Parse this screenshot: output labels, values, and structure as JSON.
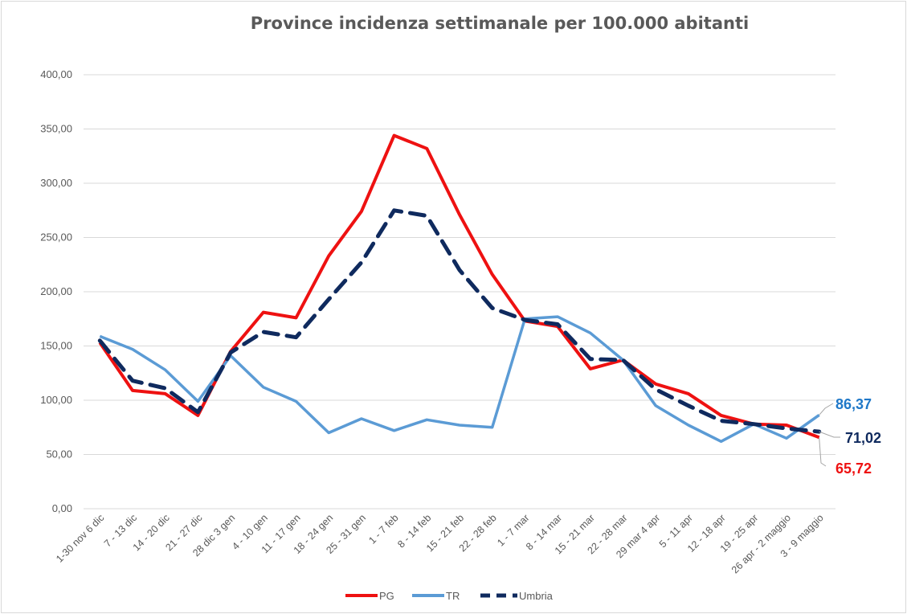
{
  "chart_data": {
    "type": "line",
    "title": "Province incidenza settimanale per 100.000 abitanti",
    "xlabel": "",
    "ylabel": "",
    "ylim": [
      0,
      400
    ],
    "yticks": [
      "0,00",
      "50,00",
      "100,00",
      "150,00",
      "200,00",
      "250,00",
      "300,00",
      "350,00",
      "400,00"
    ],
    "grid": true,
    "legend_position": "bottom",
    "categories": [
      "1-30 nov 6 dic",
      "7 - 13 dic",
      "14 - 20 dic",
      "21 - 27 dic",
      "28 dic 3 gen",
      "4 - 10 gen",
      "11 - 17 gen",
      "18 - 24 gen",
      "25 - 31 gen",
      "1 - 7 feb",
      "8 - 14 feb",
      "15 - 21 feb",
      "22 - 28 feb",
      "1 - 7 mar",
      "8 - 14 mar",
      "15 - 21 mar",
      "22 - 28 mar",
      "29 mar 4 apr",
      "5 - 11 apr",
      "12 - 18 apr",
      "19 - 25 apr",
      "26 apr - 2 maggio",
      "3 - 9 maggio"
    ],
    "series": [
      {
        "name": "PG",
        "color": "#ee1111",
        "dash": "solid",
        "values": [
          153,
          109,
          106,
          86,
          145,
          181,
          176,
          233,
          274,
          344,
          332,
          271,
          216,
          173,
          168,
          129,
          137,
          115,
          106,
          86,
          78,
          77,
          65.72
        ]
      },
      {
        "name": "TR",
        "color": "#5b9bd5",
        "dash": "solid",
        "values": [
          159,
          147,
          128,
          99,
          141,
          112,
          99,
          70,
          83,
          72,
          82,
          77,
          75,
          175,
          177,
          162,
          137,
          95,
          77,
          62,
          78,
          65,
          86.37
        ]
      },
      {
        "name": "Umbria",
        "color": "#0f2a5e",
        "dash": "dashed",
        "values": [
          155,
          118,
          111,
          89,
          144,
          163,
          158,
          193,
          227,
          275,
          270,
          220,
          185,
          174,
          170,
          138,
          137,
          110,
          95,
          81,
          78,
          74,
          71.02
        ]
      }
    ],
    "end_labels": [
      {
        "series": "TR",
        "text": "86,37",
        "color": "#1f78c8"
      },
      {
        "series": "Umbria",
        "text": "71,02",
        "color": "#0f2a5e"
      },
      {
        "series": "PG",
        "text": "65,72",
        "color": "#ee1111"
      }
    ]
  }
}
